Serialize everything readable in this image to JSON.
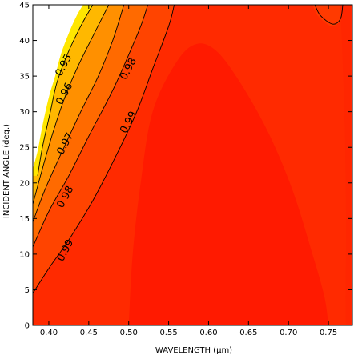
{
  "chart_data": {
    "type": "contour",
    "xlabel": "WAVELENGTH (µm)",
    "ylabel": "INCIDENT ANGLE (deg.)",
    "xlim": [
      0.38,
      0.78
    ],
    "ylim": [
      0,
      45
    ],
    "x_ticks": [
      0.4,
      0.45,
      0.5,
      0.55,
      0.6,
      0.65,
      0.7,
      0.75
    ],
    "x_tick_labels": [
      "0.40",
      "0.45",
      "0.50",
      "0.55",
      "0.60",
      "0.65",
      "0.70",
      "0.75"
    ],
    "y_ticks": [
      0,
      5,
      10,
      15,
      20,
      25,
      30,
      35,
      40,
      45
    ],
    "y_tick_labels": [
      "0",
      "5",
      "10",
      "15",
      "20",
      "25",
      "30",
      "35",
      "40",
      "45"
    ],
    "grid": false,
    "colors": {
      "high": "#ff2200",
      "peak": "#ff1a00",
      "low": "#ffe800",
      "uncovered": "#ffffff"
    },
    "fill_levels": [
      {
        "from": 0.94,
        "color": "#ffe600"
      },
      {
        "from": 0.95,
        "color": "#ffb800"
      },
      {
        "from": 0.96,
        "color": "#ff9000"
      },
      {
        "from": 0.97,
        "color": "#ff6a00"
      },
      {
        "from": 0.98,
        "color": "#ff4400"
      },
      {
        "from": 0.99,
        "color": "#ff2a00"
      },
      {
        "from": 0.995,
        "color": "#ff1e00"
      }
    ],
    "contours": [
      {
        "label": "0.95",
        "value": 0.95,
        "points": [
          [
            0.386,
            21
          ],
          [
            0.392,
            25
          ],
          [
            0.402,
            30
          ],
          [
            0.41,
            34
          ],
          [
            0.423,
            38
          ],
          [
            0.44,
            42
          ],
          [
            0.455,
            45
          ]
        ]
      },
      {
        "label": "0.96",
        "value": 0.96,
        "points": [
          [
            0.38,
            17
          ],
          [
            0.392,
            22
          ],
          [
            0.405,
            27
          ],
          [
            0.42,
            32
          ],
          [
            0.437,
            36.5
          ],
          [
            0.457,
            41
          ],
          [
            0.475,
            45
          ]
        ]
      },
      {
        "label": "0.97",
        "value": 0.97,
        "points": [
          [
            0.38,
            14.5
          ],
          [
            0.395,
            19
          ],
          [
            0.415,
            24
          ],
          [
            0.44,
            30
          ],
          [
            0.462,
            35
          ],
          [
            0.48,
            40
          ],
          [
            0.494,
            45
          ]
        ]
      },
      {
        "label": "0.98",
        "value": 0.98,
        "points": [
          [
            0.38,
            11
          ],
          [
            0.4,
            16
          ],
          [
            0.425,
            21
          ],
          [
            0.452,
            27
          ],
          [
            0.48,
            33
          ],
          [
            0.5,
            38
          ],
          [
            0.515,
            42
          ],
          [
            0.524,
            45
          ]
        ]
      },
      {
        "label": "0.99",
        "value": 0.99,
        "points": [
          [
            0.38,
            4.5
          ],
          [
            0.4,
            8
          ],
          [
            0.425,
            12
          ],
          [
            0.455,
            17.5
          ],
          [
            0.485,
            24
          ],
          [
            0.51,
            30
          ],
          [
            0.53,
            36
          ],
          [
            0.55,
            42
          ],
          [
            0.557,
            45
          ]
        ]
      },
      {
        "label": "",
        "value": 0.99,
        "points": [
          [
            0.733,
            45
          ],
          [
            0.74,
            43.5
          ],
          [
            0.755,
            42.3
          ],
          [
            0.765,
            43
          ],
          [
            0.768,
            45
          ]
        ]
      }
    ],
    "contour_labels": [
      {
        "text": "0.95",
        "x": 0.419,
        "y": 36.5
      },
      {
        "text": "0.96",
        "x": 0.42,
        "y": 32.5
      },
      {
        "text": "0.97",
        "x": 0.421,
        "y": 25.5
      },
      {
        "text": "0.98",
        "x": 0.421,
        "y": 18
      },
      {
        "text": "0.99",
        "x": 0.421,
        "y": 10.5
      },
      {
        "text": "0.98",
        "x": 0.5,
        "y": 36
      },
      {
        "text": "0.99",
        "x": 0.5,
        "y": 28.5
      }
    ]
  }
}
